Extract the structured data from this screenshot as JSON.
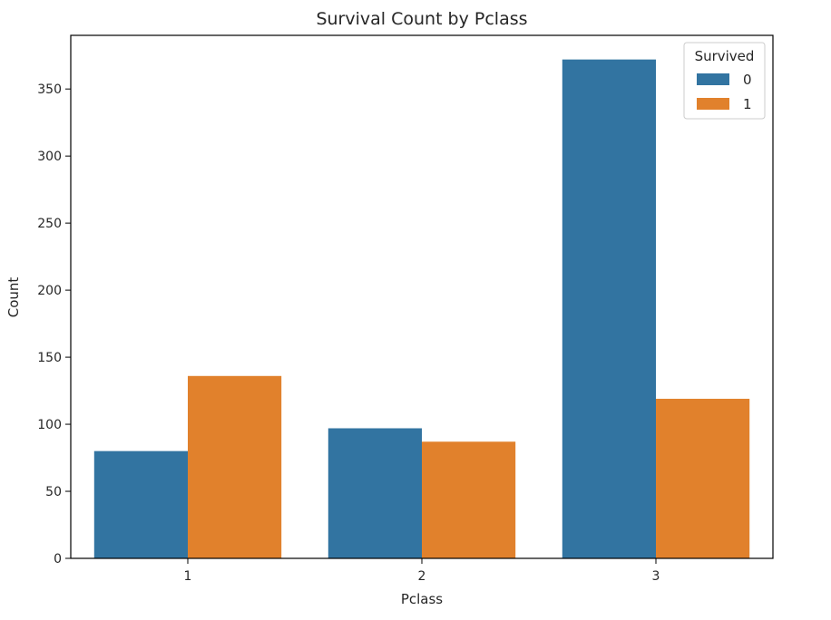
{
  "chart_data": {
    "type": "bar",
    "title": "Survival Count by Pclass",
    "xlabel": "Pclass",
    "ylabel": "Count",
    "categories": [
      "1",
      "2",
      "3"
    ],
    "series": [
      {
        "name": "0",
        "color": "#3274a1",
        "values": [
          80,
          97,
          372
        ]
      },
      {
        "name": "1",
        "color": "#e1812c",
        "values": [
          136,
          87,
          119
        ]
      }
    ],
    "ylim": [
      0,
      390
    ],
    "yticks": [
      0,
      50,
      100,
      150,
      200,
      250,
      300,
      350
    ],
    "grid": false,
    "legend": {
      "title": "Survived",
      "placement": "top-right"
    }
  }
}
